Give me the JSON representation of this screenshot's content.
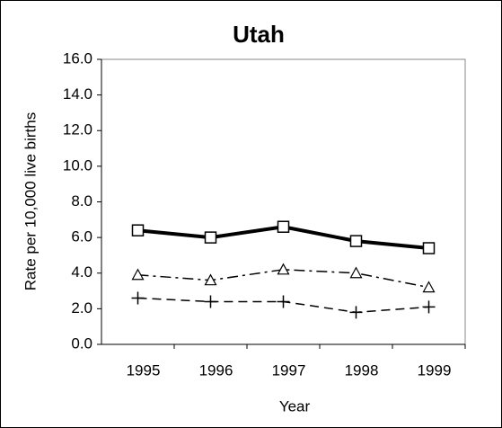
{
  "chart_data": {
    "type": "line",
    "title": "Utah",
    "xlabel": "Year",
    "ylabel": "Rate per 10,000 live births",
    "categories": [
      "1995",
      "1996",
      "1997",
      "1998",
      "1999"
    ],
    "series": [
      {
        "color": "#000000",
        "marker": "square",
        "dash": "solid",
        "width": 4,
        "values": [
          6.4,
          6.0,
          6.6,
          5.8,
          5.4
        ]
      },
      {
        "color": "#000000",
        "marker": "triangle",
        "dash": "dashdot",
        "width": 1.5,
        "values": [
          3.9,
          3.6,
          4.2,
          4.0,
          3.2
        ]
      },
      {
        "color": "#000000",
        "marker": "plus",
        "dash": "dashed",
        "width": 1.5,
        "values": [
          2.6,
          2.4,
          2.4,
          1.8,
          2.1
        ]
      }
    ],
    "ylim": [
      0,
      16
    ],
    "yticks": [
      {
        "value": 0,
        "label": "0.0"
      },
      {
        "value": 2,
        "label": "2.0"
      },
      {
        "value": 4,
        "label": "4.0"
      },
      {
        "value": 6,
        "label": "6.0"
      },
      {
        "value": 8,
        "label": "8.0"
      },
      {
        "value": 10,
        "label": "10.0"
      },
      {
        "value": 12,
        "label": "12.0"
      },
      {
        "value": 14,
        "label": "14.0"
      },
      {
        "value": 16,
        "label": "16.0"
      }
    ],
    "grid": false
  }
}
